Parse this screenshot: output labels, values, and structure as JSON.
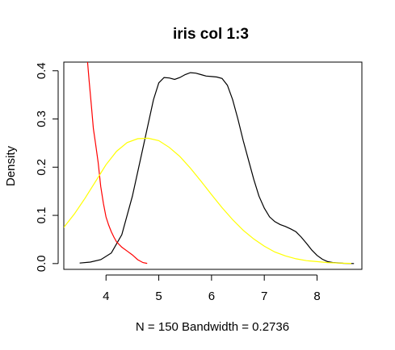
{
  "chart_data": {
    "type": "line",
    "title": "iris col 1:3",
    "xlabel": "N = 150   Bandwidth = 0.2736",
    "ylabel": "Density",
    "xlim": [
      3.2,
      8.85
    ],
    "ylim": [
      -0.012,
      0.418
    ],
    "x_ticks": [
      4,
      5,
      6,
      7,
      8
    ],
    "y_ticks": [
      0.0,
      0.1,
      0.2,
      0.3,
      0.4
    ],
    "x_tick_labels": [
      "4",
      "5",
      "6",
      "7",
      "8"
    ],
    "y_tick_labels": [
      "0.0",
      "0.1",
      "0.2",
      "0.3",
      "0.4"
    ],
    "grid": false,
    "legend": "none",
    "series": [
      {
        "color": "#000000",
        "x": [
          3.5,
          3.7,
          3.9,
          4.1,
          4.3,
          4.5,
          4.7,
          4.9,
          5.0,
          5.1,
          5.2,
          5.3,
          5.4,
          5.5,
          5.6,
          5.7,
          5.8,
          5.9,
          6.0,
          6.1,
          6.2,
          6.3,
          6.4,
          6.5,
          6.6,
          6.7,
          6.8,
          6.9,
          7.0,
          7.1,
          7.2,
          7.3,
          7.4,
          7.5,
          7.6,
          7.7,
          7.8,
          7.9,
          8.0,
          8.1,
          8.2,
          8.3,
          8.5,
          8.7
        ],
        "y": [
          0.001,
          0.003,
          0.008,
          0.022,
          0.06,
          0.14,
          0.24,
          0.34,
          0.375,
          0.386,
          0.385,
          0.382,
          0.386,
          0.392,
          0.396,
          0.395,
          0.392,
          0.389,
          0.388,
          0.387,
          0.384,
          0.37,
          0.34,
          0.3,
          0.255,
          0.215,
          0.175,
          0.14,
          0.115,
          0.097,
          0.087,
          0.081,
          0.077,
          0.072,
          0.066,
          0.055,
          0.042,
          0.028,
          0.017,
          0.009,
          0.004,
          0.002,
          0.0005,
          0.0001
        ]
      },
      {
        "color": "#ff0000",
        "x": [
          3.65,
          3.68,
          3.72,
          3.76,
          3.8,
          3.85,
          3.9,
          3.95,
          4.0,
          4.05,
          4.1,
          4.15,
          4.2,
          4.3,
          4.4,
          4.5,
          4.6,
          4.7,
          4.78
        ],
        "y": [
          0.418,
          0.38,
          0.33,
          0.28,
          0.25,
          0.21,
          0.16,
          0.125,
          0.097,
          0.08,
          0.066,
          0.055,
          0.045,
          0.034,
          0.026,
          0.018,
          0.008,
          0.002,
          0.0003
        ]
      },
      {
        "color": "#ffff00",
        "x": [
          3.2,
          3.4,
          3.6,
          3.8,
          4.0,
          4.2,
          4.4,
          4.6,
          4.8,
          5.0,
          5.2,
          5.4,
          5.6,
          5.8,
          6.0,
          6.2,
          6.4,
          6.6,
          6.8,
          7.0,
          7.2,
          7.4,
          7.6,
          7.8,
          8.0,
          8.2,
          8.4,
          8.65
        ],
        "y": [
          0.075,
          0.103,
          0.135,
          0.17,
          0.205,
          0.233,
          0.251,
          0.259,
          0.26,
          0.255,
          0.241,
          0.222,
          0.198,
          0.171,
          0.143,
          0.116,
          0.091,
          0.069,
          0.051,
          0.036,
          0.024,
          0.016,
          0.01,
          0.006,
          0.004,
          0.002,
          0.001,
          0.0004
        ]
      }
    ]
  }
}
